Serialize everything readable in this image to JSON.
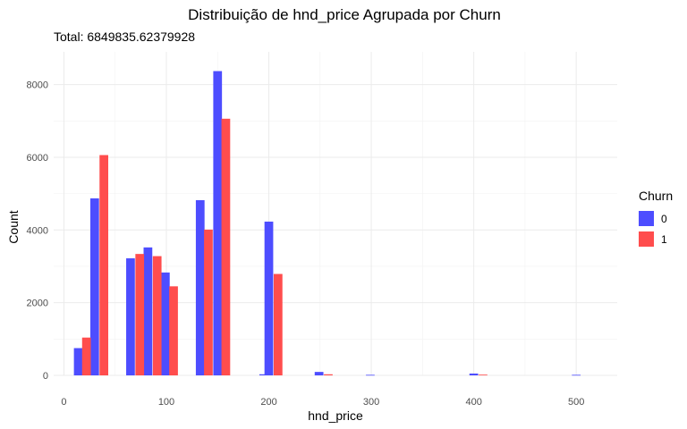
{
  "chart_data": {
    "type": "bar",
    "title": "Distribuição de hnd_price Agrupada por Churn",
    "subtitle": "Total: 6849835.62379928",
    "xlabel": "hnd_price",
    "ylabel": "Count",
    "xlim": [
      -10,
      540
    ],
    "ylim": [
      0,
      8900
    ],
    "x_ticks": [
      0,
      100,
      200,
      300,
      400,
      500
    ],
    "y_ticks": [
      0,
      2000,
      4000,
      6000,
      8000
    ],
    "bar_width": 8.5,
    "grid": true,
    "legend": {
      "title": "Churn",
      "position": "right"
    },
    "series": [
      {
        "name": "0",
        "color": "#4d4dff",
        "points": [
          {
            "x": 14,
            "y": 750
          },
          {
            "x": 30,
            "y": 4870
          },
          {
            "x": 65,
            "y": 3220
          },
          {
            "x": 82,
            "y": 3520
          },
          {
            "x": 99,
            "y": 2830
          },
          {
            "x": 133,
            "y": 4820
          },
          {
            "x": 150,
            "y": 8370
          },
          {
            "x": 195,
            "y": 30
          },
          {
            "x": 200,
            "y": 4230
          },
          {
            "x": 249,
            "y": 95
          },
          {
            "x": 299,
            "y": 15
          },
          {
            "x": 400,
            "y": 50
          },
          {
            "x": 500,
            "y": 15
          }
        ]
      },
      {
        "name": "1",
        "color": "#ff4d4d",
        "points": [
          {
            "x": 22,
            "y": 1040
          },
          {
            "x": 39,
            "y": 6060
          },
          {
            "x": 74,
            "y": 3340
          },
          {
            "x": 91,
            "y": 3280
          },
          {
            "x": 107,
            "y": 2450
          },
          {
            "x": 141,
            "y": 4010
          },
          {
            "x": 158,
            "y": 7060
          },
          {
            "x": 209,
            "y": 2790
          },
          {
            "x": 258,
            "y": 30
          },
          {
            "x": 409,
            "y": 20
          }
        ]
      }
    ]
  }
}
